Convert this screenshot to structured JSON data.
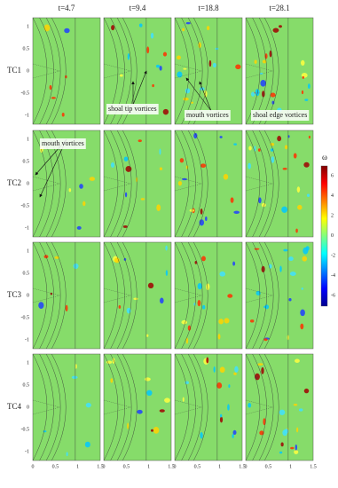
{
  "columns": [
    "t=4.7",
    "t=9.4",
    "t=18.8",
    "t=28.1"
  ],
  "rows": [
    "TC1",
    "TC2",
    "TC3",
    "TC4"
  ],
  "y_ticks": [
    "1",
    "0.5",
    "0",
    "-0.5",
    "-1"
  ],
  "x_ticks": [
    "0",
    "0.5",
    "1",
    "1.5"
  ],
  "colorbar": {
    "label": "ω",
    "ticks": [
      "6",
      "4",
      "2",
      "0",
      "-2",
      "-4",
      "-6"
    ]
  },
  "annotations": [
    "shoal tip vortices",
    "mouth vortices",
    "shoal edge vortices",
    "mouth vortices"
  ]
}
